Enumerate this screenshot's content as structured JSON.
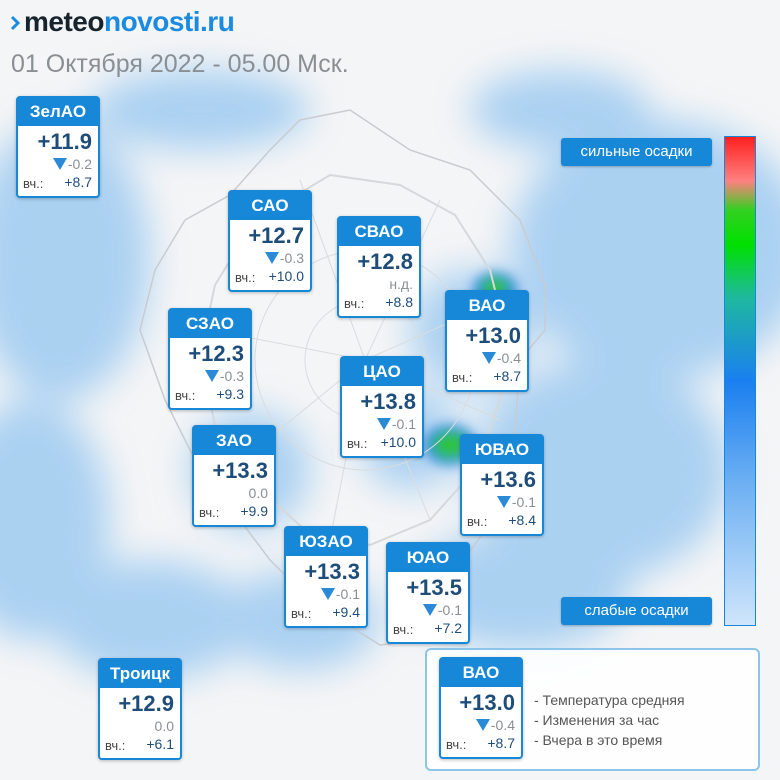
{
  "header": {
    "logo_part1": "meteo",
    "logo_part2": "novosti.ru",
    "date": "01 Октября 2022 - 05.00 Мск."
  },
  "yesterday_label": "вч.:",
  "districts": [
    {
      "name": "ЗелАО",
      "temp": "+11.9",
      "change": "-0.2",
      "trend": "down",
      "yesterday": "+8.7"
    },
    {
      "name": "САО",
      "temp": "+12.7",
      "change": "-0.3",
      "trend": "down",
      "yesterday": "+10.0"
    },
    {
      "name": "СВАО",
      "temp": "+12.8",
      "change": "н.д.",
      "trend": "none",
      "yesterday": "+8.8"
    },
    {
      "name": "ВАО",
      "temp": "+13.0",
      "change": "-0.4",
      "trend": "down",
      "yesterday": "+8.7"
    },
    {
      "name": "СЗАО",
      "temp": "+12.3",
      "change": "-0.3",
      "trend": "down",
      "yesterday": "+9.3"
    },
    {
      "name": "ЦАО",
      "temp": "+13.8",
      "change": "-0.1",
      "trend": "down",
      "yesterday": "+10.0"
    },
    {
      "name": "ЗАО",
      "temp": "+13.3",
      "change": "0.0",
      "trend": "none",
      "yesterday": "+9.9"
    },
    {
      "name": "ЮВАО",
      "temp": "+13.6",
      "change": "-0.1",
      "trend": "down",
      "yesterday": "+8.4"
    },
    {
      "name": "ЮЗАО",
      "temp": "+13.3",
      "change": "-0.1",
      "trend": "down",
      "yesterday": "+9.4"
    },
    {
      "name": "ЮАО",
      "temp": "+13.5",
      "change": "-0.1",
      "trend": "down",
      "yesterday": "+7.2"
    },
    {
      "name": "Троицк",
      "temp": "+12.9",
      "change": "0.0",
      "trend": "none",
      "yesterday": "+6.1"
    }
  ],
  "scale": {
    "top_label": "сильные осадки",
    "bottom_label": "слабые осадки",
    "colors": [
      "#ff2020",
      "#ff8080",
      "#00e000",
      "#1a7ff0",
      "#cfe5fb"
    ]
  },
  "legend": {
    "sample": {
      "name": "ВАО",
      "temp": "+13.0",
      "change": "-0.4",
      "yesterday": "+8.7"
    },
    "items": [
      "- Температура средняя",
      "- Изменения за час",
      "- Вчера в это время"
    ]
  },
  "colors": {
    "accent": "#1787d8",
    "temp_text": "#1f4d7a",
    "precip_light": "#9cc8f0",
    "precip_heavy": "#2fbf3a"
  }
}
